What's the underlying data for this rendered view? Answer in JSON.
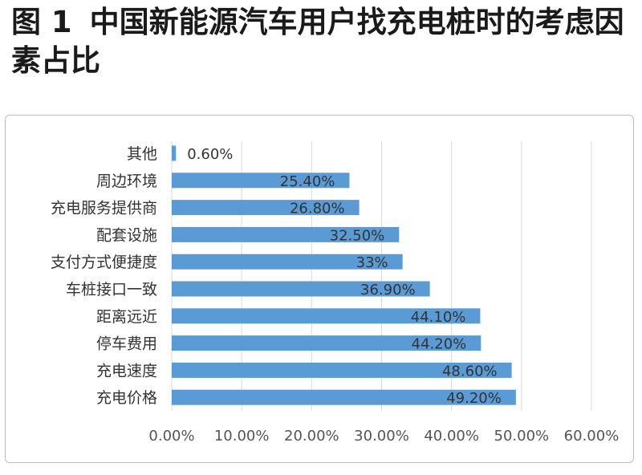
{
  "figure": {
    "label": "图 1",
    "title": "中国新能源汽车用户找充电桩时的考虑因素占比"
  },
  "chart_data": {
    "type": "bar",
    "orientation": "horizontal",
    "categories": [
      "其他",
      "周边环境",
      "充电服务提供商",
      "配套设施",
      "支付方式便捷度",
      "车桩接口一致",
      "距离远近",
      "停车费用",
      "充电速度",
      "充电价格"
    ],
    "values": [
      0.6,
      25.4,
      26.8,
      32.5,
      33,
      36.9,
      44.1,
      44.2,
      48.6,
      49.2
    ],
    "value_labels": [
      "0.60%",
      "25.40%",
      "26.80%",
      "32.50%",
      "33%",
      "36.90%",
      "44.10%",
      "44.20%",
      "48.60%",
      "49.20%"
    ],
    "xlim": [
      0,
      60
    ],
    "xticks": [
      0,
      10,
      20,
      30,
      40,
      50,
      60
    ],
    "xtick_labels": [
      "0.00%",
      "10.00%",
      "20.00%",
      "30.00%",
      "40.00%",
      "50.00%",
      "60.00%"
    ],
    "grid": true,
    "legend": "none",
    "bar_color": "#5b9bd5"
  }
}
